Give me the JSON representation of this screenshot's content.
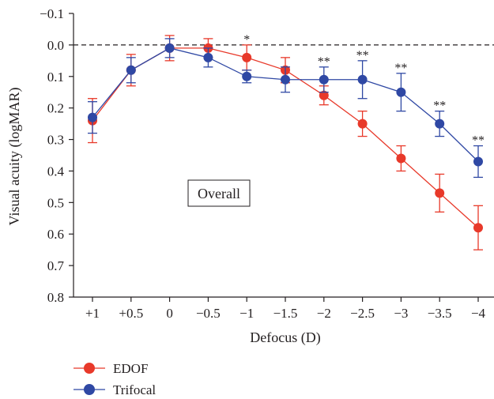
{
  "chart_data": {
    "type": "line",
    "xlabel": "Defocus (D)",
    "ylabel": "Visual acuity (logMAR)",
    "categories": [
      "+1",
      "+0.5",
      "0",
      "−0.5",
      "−1",
      "−1.5",
      "−2",
      "−2.5",
      "−3",
      "−3.5",
      "−4"
    ],
    "y_ticks": [
      -0.1,
      0.0,
      0.1,
      0.2,
      0.3,
      0.4,
      0.5,
      0.6,
      0.7,
      0.8
    ],
    "y_tick_labels": [
      "−0.1",
      "0.0",
      "0.1",
      "0.2",
      "0.3",
      "0.4",
      "0.5",
      "0.6",
      "0.7",
      "0.8"
    ],
    "ylim": [
      -0.1,
      0.8
    ],
    "y_inverted": true,
    "reference_line": {
      "y": 0.0,
      "style": "dashed"
    },
    "inset_label": "Overall",
    "series": [
      {
        "name": "EDOF",
        "color": "#e8392a",
        "values": [
          0.24,
          0.08,
          0.01,
          0.01,
          0.04,
          0.08,
          0.16,
          0.25,
          0.36,
          0.47,
          0.58
        ],
        "error": [
          0.07,
          0.05,
          0.04,
          0.03,
          0.04,
          0.04,
          0.03,
          0.04,
          0.04,
          0.06,
          0.07
        ]
      },
      {
        "name": "Trifocal",
        "color": "#2f48a4",
        "values": [
          0.23,
          0.08,
          0.01,
          0.04,
          0.1,
          0.11,
          0.11,
          0.11,
          0.15,
          0.25,
          0.37
        ],
        "error": [
          0.05,
          0.04,
          0.03,
          0.03,
          0.02,
          0.04,
          0.04,
          0.06,
          0.06,
          0.04,
          0.05
        ]
      }
    ],
    "significance": [
      {
        "category": "−1",
        "label": "*"
      },
      {
        "category": "−2",
        "label": "**"
      },
      {
        "category": "−2.5",
        "label": "**"
      },
      {
        "category": "−3",
        "label": "**"
      },
      {
        "category": "−3.5",
        "label": "**"
      },
      {
        "category": "−4",
        "label": "**"
      }
    ],
    "legend_position": "bottom-left"
  }
}
